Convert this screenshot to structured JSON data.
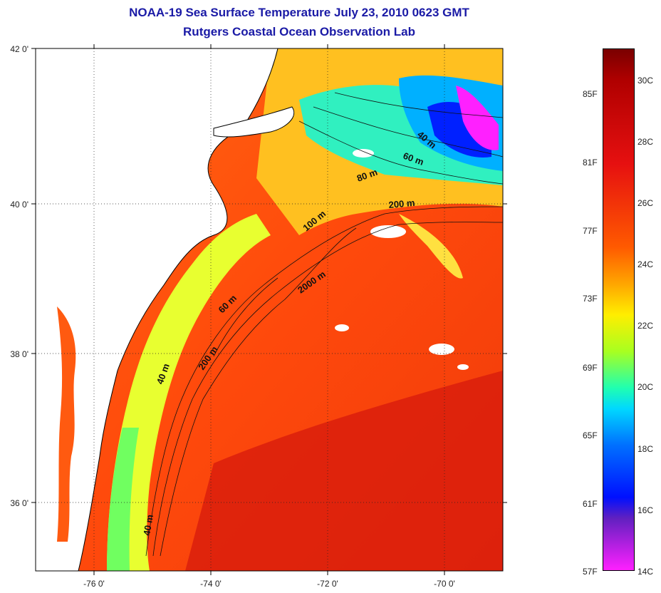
{
  "title": {
    "line1": "NOAA-19 Sea Surface Temperature July 23, 2010 0623 GMT",
    "line2": "Rutgers Coastal Ocean Observation Lab"
  },
  "axes": {
    "x_ticks": [
      "-76 0'",
      "-74 0'",
      "-72 0'",
      "-70 0'"
    ],
    "y_ticks": [
      "42 0'",
      "40 0'",
      "38 0'",
      "36 0'"
    ]
  },
  "contours": [
    "40 m",
    "60 m",
    "80 m",
    "200 m",
    "100 m",
    "2000 m",
    "60 m",
    "40 m",
    "200 m",
    "40 m"
  ],
  "colorbar": {
    "fahrenheit": [
      "85F",
      "81F",
      "77F",
      "73F",
      "69F",
      "65F",
      "61F",
      "57F"
    ],
    "celsius": [
      "30C",
      "28C",
      "26C",
      "24C",
      "22C",
      "20C",
      "18C",
      "16C",
      "14C"
    ]
  },
  "colors": {
    "title": "#1a1aa6",
    "warm": "#ff4a10",
    "hot": "#d61010",
    "cool": "#00d0ff",
    "cold": "#0020ff",
    "magenta": "#ff20ff"
  }
}
